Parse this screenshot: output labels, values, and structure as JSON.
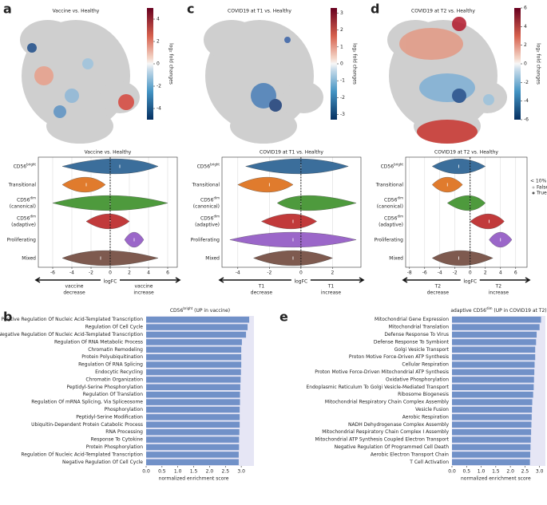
{
  "chart_data": [
    {
      "type": "umap",
      "panel": "a",
      "title": "Vaccine vs. Healthy",
      "colorbar": {
        "label": "log₂ fold changes",
        "lim": [
          -5,
          5
        ],
        "ticks": [
          -4,
          -2,
          0,
          2,
          4
        ]
      }
    },
    {
      "type": "violin",
      "title": "Vaccine vs. Healthy",
      "categories": [
        {
          "main": "CD56",
          "sup": "bright"
        },
        {
          "main": "Transitional"
        },
        {
          "main": "CD56",
          "sup": "dim",
          "line2": "(canonical)"
        },
        {
          "main": "CD56",
          "sup": "dim",
          "line2": "(adaptive)"
        },
        {
          "main": "Proliferating"
        },
        {
          "main": "Mixed"
        }
      ],
      "colors": [
        "#3b6e9b",
        "#e07b2d",
        "#4e9a3d",
        "#c13a3b",
        "#9b67c9",
        "#7e5a4f"
      ],
      "low": [
        -5,
        -5,
        -6,
        -2.5,
        1.5,
        -5
      ],
      "center": [
        1,
        -2.5,
        0,
        0,
        2.5,
        -1
      ],
      "high": [
        5,
        -0.5,
        6,
        2,
        3.5,
        5
      ],
      "xlim": [
        -7.5,
        7
      ],
      "xticks": [
        -6,
        -4,
        -2,
        0,
        2,
        4,
        6
      ],
      "refline": 0,
      "grid": true,
      "xlabel": "logFC",
      "left_arrow": [
        "vaccine",
        "decrease"
      ],
      "right_arrow": [
        "vaccine",
        "increase"
      ]
    },
    {
      "type": "umap",
      "panel": "c",
      "title": "COVID19 at T1 vs. Healthy",
      "colorbar": {
        "label": "log₂ fold changes",
        "lim": [
          -3.3,
          3.3
        ],
        "ticks": [
          -3,
          -2,
          -1,
          0,
          1,
          2,
          3
        ]
      }
    },
    {
      "type": "violin",
      "title": "COVID19 at T1 vs. Healthy",
      "categories": [
        {
          "main": "CD56",
          "sup": "bright"
        },
        {
          "main": "Transitional"
        },
        {
          "main": "CD56",
          "sup": "dim",
          "line2": "(canonical)"
        },
        {
          "main": "CD56",
          "sup": "dim",
          "line2": "(adaptive)"
        },
        {
          "main": "Proliferating"
        },
        {
          "main": "Mixed"
        }
      ],
      "colors": [
        "#3b6e9b",
        "#e07b2d",
        "#4e9a3d",
        "#c13a3b",
        "#9b67c9",
        "#7e5a4f"
      ],
      "low": [
        -3.5,
        -4,
        -1.5,
        -2.5,
        -4.5,
        -3
      ],
      "center": [
        0,
        -2,
        0,
        -0.5,
        -0.5,
        -0.5
      ],
      "high": [
        3,
        -0.5,
        3.5,
        1,
        3.5,
        2
      ],
      "xlim": [
        -5,
        3.8
      ],
      "xticks": [
        -4,
        -2,
        0,
        2
      ],
      "refline": 0,
      "grid": true,
      "xlabel": "logFC",
      "left_arrow": [
        "T1",
        "decrease"
      ],
      "right_arrow": [
        "T1",
        "increase"
      ]
    },
    {
      "type": "umap",
      "panel": "d",
      "title": "COVID19 at T2 vs. Healthy",
      "colorbar": {
        "label": "log₂ fold changes",
        "lim": [
          -6,
          6
        ],
        "ticks": [
          -6,
          -4,
          -2,
          0,
          2,
          4,
          6
        ]
      }
    },
    {
      "type": "violin",
      "title": "COVID19 at T2 vs. Healthy",
      "categories": [
        {
          "main": "CD56",
          "sup": "bright"
        },
        {
          "main": "Transitional"
        },
        {
          "main": "CD56",
          "sup": "dim",
          "line2": "(canonical)"
        },
        {
          "main": "CD56",
          "sup": "dim",
          "line2": "(adaptive)"
        },
        {
          "main": "Proliferating"
        },
        {
          "main": "Mixed"
        }
      ],
      "colors": [
        "#3b6e9b",
        "#e07b2d",
        "#4e9a3d",
        "#c13a3b",
        "#9b67c9",
        "#7e5a4f"
      ],
      "low": [
        -5,
        -5,
        -3,
        0,
        2.5,
        -5
      ],
      "center": [
        -1.5,
        -3,
        0,
        2.5,
        4,
        -1.5
      ],
      "high": [
        2,
        -1,
        2,
        4.5,
        5.5,
        3
      ],
      "xlim": [
        -8.5,
        7.5
      ],
      "xticks": [
        -8,
        -6,
        -4,
        -2,
        0,
        2,
        4,
        6
      ],
      "refline": 0,
      "grid": true,
      "xlabel": "logFC",
      "left_arrow": [
        "T2",
        "decrease"
      ],
      "right_arrow": [
        "T2",
        "increase"
      ],
      "legend": {
        "title": "< 10% SpatialFDR",
        "items": [
          "False",
          "True"
        ],
        "colors": [
          "#bbbbbb",
          "#555555"
        ]
      }
    },
    {
      "type": "bar",
      "panel": "b",
      "title": {
        "pre": "CD56",
        "sup": "bright",
        "post": " (UP in vaccine)"
      },
      "color": "#7191c8",
      "background": "#e6e6f5",
      "categories": [
        "Positive Regulation Of Nucleic Acid-Templated Transcription",
        "Regulation Of Cell Cycle",
        "Negative Regulation Of Nucleic Acid-Templated Transcription",
        "Regulation Of RNA Metabolic Process",
        "Chromatin Remodeling",
        "Protein Polyubiquitination",
        "Regulation Of RNA Splicing",
        "Endocytic Recycling",
        "Chromatin Organization",
        "Peptidyl-Serine Phosphorylation",
        "Regulation Of Translation",
        "Regulation Of mRNA Splicing, Via Spliceosome",
        "Phosphorylation",
        "Peptidyl-Serine Modification",
        "Ubiquitin-Dependent Protein Catabolic Process",
        "RNA Processing",
        "Response To Cytokine",
        "Protein Phosphorylation",
        "Regulation Of Nucleic Acid-Templated Transcription",
        "Negative Regulation Of Cell Cycle"
      ],
      "values": [
        3.25,
        3.2,
        3.15,
        3.02,
        3.0,
        3.0,
        3.0,
        2.99,
        2.98,
        2.97,
        2.96,
        2.96,
        2.95,
        2.95,
        2.95,
        2.94,
        2.93,
        2.93,
        2.92,
        2.92
      ],
      "xlim": [
        0,
        3.4
      ],
      "xticks": [
        {
          "value": 0,
          "label": "0.0"
        },
        0.5,
        {
          "value": 1,
          "label": "1.0"
        },
        1.5,
        {
          "value": 2,
          "label": "2.0"
        },
        2.5,
        {
          "value": 3,
          "label": "3.0"
        }
      ],
      "xlabel": "normalized enrichment score"
    },
    {
      "type": "bar",
      "panel": "e",
      "title": {
        "pre": "adaptive CD56",
        "sup": "dim",
        "post": " (UP in COVID19 at T2)"
      },
      "color": "#7191c8",
      "background": "#e6e6f5",
      "categories": [
        "Mitochondrial Gene Expression",
        "Mitochondrial Translation",
        "Defense Response To Virus",
        "Defense Response To Symbiont",
        "Golgi Vesicle Transport",
        "Proton Motive Force-Driven ATP Synthesis",
        "Cellular Respiration",
        "Proton Motive Force-Driven Mitochondrial ATP Synthesis",
        "Oxidative Phosphorylation",
        "Endoplasmic Reticulum To Golgi Vesicle-Mediated Transport",
        "Ribosome Biogenesis",
        "Mitochondrial Respiratory Chain Complex Assembly",
        "Vesicle Fusion",
        "Aerobic Respiration",
        "NADH Dehydrogenase Complex Assembly",
        "Mitochondrial Respiratory Chain Complex I Assembly",
        "Mitochondrial ATP Synthesis Coupled Electron Transport",
        "Negative Regulation Of Programmed Cell Death",
        "Aerobic Electron Transport Chain",
        "T Cell Activation"
      ],
      "values": [
        3.05,
        3.0,
        2.9,
        2.88,
        2.85,
        2.85,
        2.83,
        2.82,
        2.81,
        2.8,
        2.78,
        2.75,
        2.74,
        2.73,
        2.72,
        2.71,
        2.7,
        2.69,
        2.68,
        2.67
      ],
      "xlim": [
        0,
        3.2
      ],
      "xticks": [
        {
          "value": 0,
          "label": "0.0"
        },
        0.5,
        {
          "value": 1,
          "label": "1.0"
        },
        1.5,
        {
          "value": 2,
          "label": "2.0"
        },
        2.5,
        {
          "value": 3,
          "label": "3.0"
        }
      ],
      "xlabel": "normalized enrichment score"
    }
  ]
}
